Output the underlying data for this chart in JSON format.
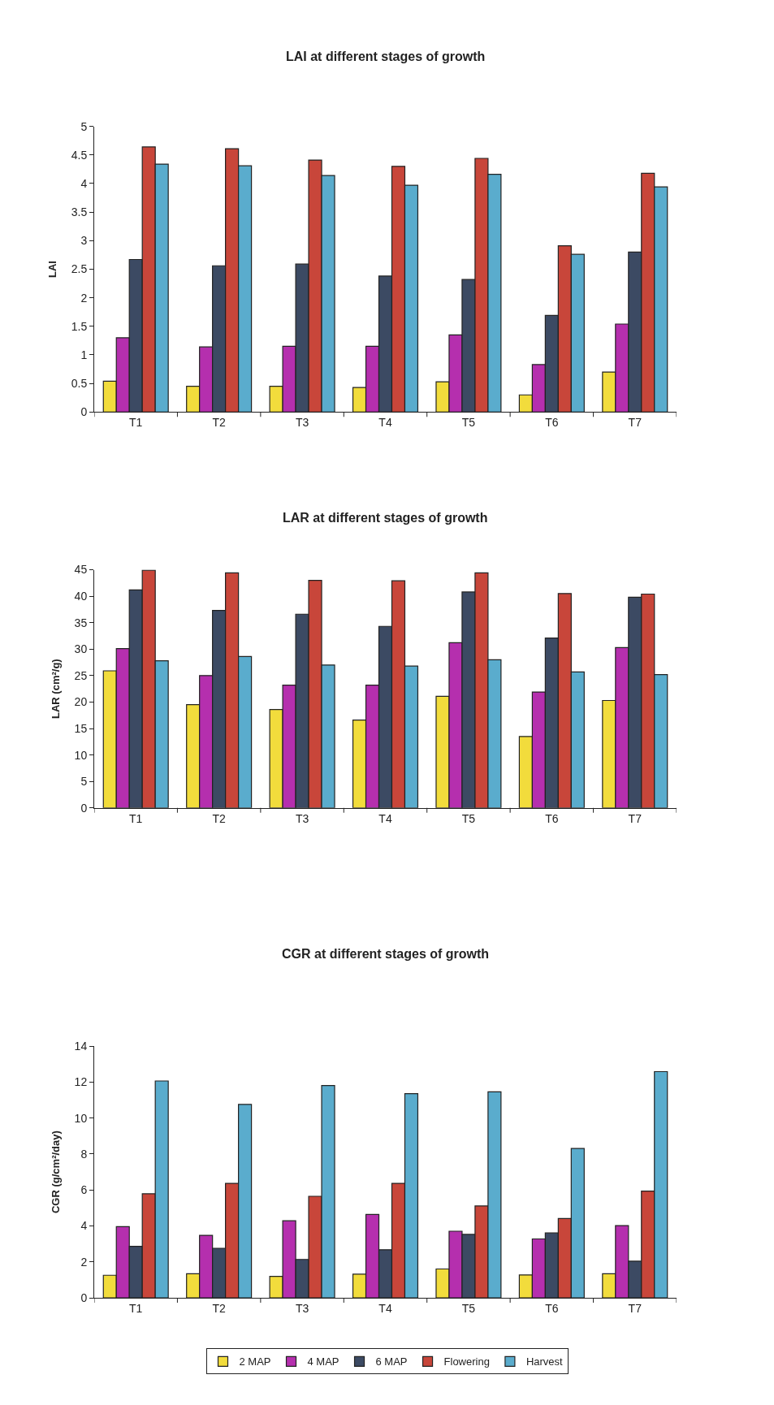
{
  "chart_data": [
    {
      "type": "bar",
      "title": "LAI at different stages of growth",
      "ylabel": "LAI",
      "categories": [
        "T1",
        "T2",
        "T3",
        "T4",
        "T5",
        "T6",
        "T7"
      ],
      "ylim": [
        0,
        5
      ],
      "yticks": [
        0,
        0.5,
        1,
        1.5,
        2,
        2.5,
        3,
        3.5,
        4,
        4.5,
        5
      ],
      "legend": false,
      "series": [
        {
          "color": "#f2dc3c",
          "values": [
            0.54,
            0.45,
            0.45,
            0.43,
            0.53,
            0.3,
            0.7
          ]
        },
        {
          "color": "#b52fae",
          "values": [
            1.3,
            1.14,
            1.15,
            1.15,
            1.35,
            0.83,
            1.54
          ]
        },
        {
          "color": "#3c4a63",
          "values": [
            2.67,
            2.56,
            2.59,
            2.38,
            2.32,
            1.69,
            2.8
          ]
        },
        {
          "color": "#c8463a",
          "values": [
            4.64,
            4.61,
            4.41,
            4.3,
            4.44,
            2.91,
            4.18
          ]
        },
        {
          "color": "#5aaccd",
          "values": [
            4.34,
            4.31,
            4.14,
            3.97,
            4.16,
            2.76,
            3.94
          ]
        }
      ]
    },
    {
      "type": "bar",
      "title": "LAR at different stages of growth",
      "ylabel": "LAR (cm²/g)",
      "categories": [
        "T1",
        "T2",
        "T3",
        "T4",
        "T5",
        "T6",
        "T7"
      ],
      "ylim": [
        0,
        45
      ],
      "yticks": [
        0,
        5,
        10,
        15,
        20,
        25,
        30,
        35,
        40,
        45
      ],
      "legend": false,
      "series": [
        {
          "color": "#f2dc3c",
          "values": [
            25.9,
            19.5,
            18.6,
            16.6,
            21.1,
            13.5,
            20.3
          ]
        },
        {
          "color": "#b52fae",
          "values": [
            30.1,
            25.0,
            23.2,
            23.2,
            31.2,
            21.9,
            30.3
          ]
        },
        {
          "color": "#3c4a63",
          "values": [
            41.2,
            37.3,
            36.6,
            34.3,
            40.8,
            32.1,
            39.8
          ]
        },
        {
          "color": "#c8463a",
          "values": [
            44.9,
            44.4,
            43.0,
            42.9,
            44.4,
            40.5,
            40.4
          ]
        },
        {
          "color": "#5aaccd",
          "values": [
            27.8,
            28.6,
            27.0,
            26.8,
            28.0,
            25.7,
            25.2
          ]
        }
      ]
    },
    {
      "type": "bar",
      "title": "CGR at different stages of growth",
      "ylabel": "CGR (g/cm²/day)",
      "categories": [
        "T1",
        "T2",
        "T3",
        "T4",
        "T5",
        "T6",
        "T7"
      ],
      "ylim": [
        0,
        14
      ],
      "yticks": [
        0,
        2,
        4,
        6,
        8,
        10,
        12,
        14
      ],
      "legend": "bottom",
      "series": [
        {
          "name": "2 MAP",
          "color": "#f2dc3c",
          "values": [
            1.26,
            1.34,
            1.2,
            1.32,
            1.61,
            1.28,
            1.34
          ]
        },
        {
          "name": "4 MAP",
          "color": "#b52fae",
          "values": [
            3.96,
            3.48,
            4.29,
            4.64,
            3.71,
            3.28,
            4.02
          ]
        },
        {
          "name": "6 MAP",
          "color": "#3c4a63",
          "values": [
            2.87,
            2.76,
            2.14,
            2.68,
            3.53,
            3.61,
            2.04
          ]
        },
        {
          "name": "Flowering",
          "color": "#c8463a",
          "values": [
            5.79,
            6.37,
            5.65,
            6.37,
            5.11,
            4.41,
            5.94
          ]
        },
        {
          "name": "Harvest",
          "color": "#5aaccd",
          "values": [
            12.06,
            10.76,
            11.81,
            11.36,
            11.46,
            8.31,
            12.58
          ]
        }
      ]
    }
  ]
}
